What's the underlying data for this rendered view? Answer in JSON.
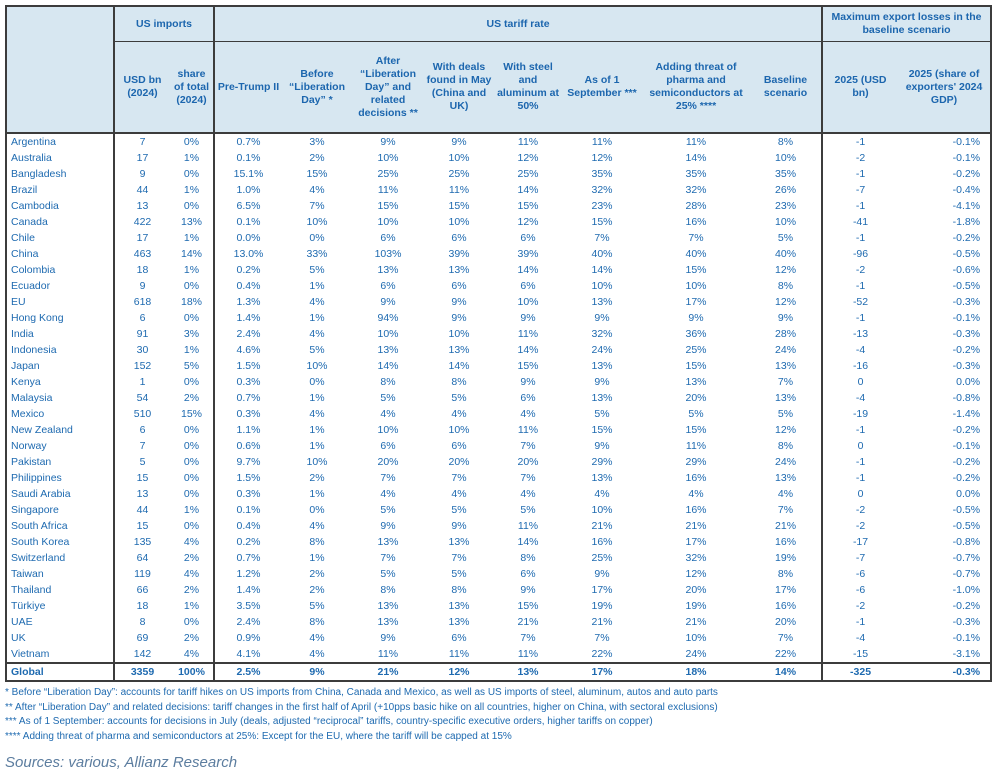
{
  "colors": {
    "header_bg": "#d7e7f1",
    "text_blue": "#1e6ab0",
    "border": "#3c3c3c",
    "source_text": "#5c7d9f"
  },
  "chart_data": {
    "type": "table",
    "column_groups": [
      "US imports",
      "US tariff rate",
      "Maximum export losses in the baseline scenario"
    ],
    "subheaders": [
      "USD bn (2024)",
      "share of total (2024)",
      "Pre-Trump II",
      "Before “Liberation Day” *",
      "After “Liberation Day” and related decisions **",
      "With deals found in May (China and UK)",
      "With steel and aluminum at 50%",
      "As of 1 September ***",
      "Adding threat of pharma and semiconductors at 25% ****",
      "Baseline scenario",
      "2025 (USD bn)",
      "2025 (share of exporters' 2024 GDP)"
    ],
    "rows": [
      [
        "Argentina",
        "7",
        "0%",
        "0.7%",
        "3%",
        "9%",
        "9%",
        "11%",
        "11%",
        "11%",
        "8%",
        "-1",
        "-0.1%"
      ],
      [
        "Australia",
        "17",
        "1%",
        "0.1%",
        "2%",
        "10%",
        "10%",
        "12%",
        "12%",
        "14%",
        "10%",
        "-2",
        "-0.1%"
      ],
      [
        "Bangladesh",
        "9",
        "0%",
        "15.1%",
        "15%",
        "25%",
        "25%",
        "25%",
        "35%",
        "35%",
        "35%",
        "-1",
        "-0.2%"
      ],
      [
        "Brazil",
        "44",
        "1%",
        "1.0%",
        "4%",
        "11%",
        "11%",
        "14%",
        "32%",
        "32%",
        "26%",
        "-7",
        "-0.4%"
      ],
      [
        "Cambodia",
        "13",
        "0%",
        "6.5%",
        "7%",
        "15%",
        "15%",
        "15%",
        "23%",
        "28%",
        "23%",
        "-1",
        "-4.1%"
      ],
      [
        "Canada",
        "422",
        "13%",
        "0.1%",
        "10%",
        "10%",
        "10%",
        "12%",
        "15%",
        "16%",
        "10%",
        "-41",
        "-1.8%"
      ],
      [
        "Chile",
        "17",
        "1%",
        "0.0%",
        "0%",
        "6%",
        "6%",
        "6%",
        "7%",
        "7%",
        "5%",
        "-1",
        "-0.2%"
      ],
      [
        "China",
        "463",
        "14%",
        "13.0%",
        "33%",
        "103%",
        "39%",
        "39%",
        "40%",
        "40%",
        "40%",
        "-96",
        "-0.5%"
      ],
      [
        "Colombia",
        "18",
        "1%",
        "0.2%",
        "5%",
        "13%",
        "13%",
        "14%",
        "14%",
        "15%",
        "12%",
        "-2",
        "-0.6%"
      ],
      [
        "Ecuador",
        "9",
        "0%",
        "0.4%",
        "1%",
        "6%",
        "6%",
        "6%",
        "10%",
        "10%",
        "8%",
        "-1",
        "-0.5%"
      ],
      [
        "EU",
        "618",
        "18%",
        "1.3%",
        "4%",
        "9%",
        "9%",
        "10%",
        "13%",
        "17%",
        "12%",
        "-52",
        "-0.3%"
      ],
      [
        "Hong Kong",
        "6",
        "0%",
        "1.4%",
        "1%",
        "94%",
        "9%",
        "9%",
        "9%",
        "9%",
        "9%",
        "-1",
        "-0.1%"
      ],
      [
        "India",
        "91",
        "3%",
        "2.4%",
        "4%",
        "10%",
        "10%",
        "11%",
        "32%",
        "36%",
        "28%",
        "-13",
        "-0.3%"
      ],
      [
        "Indonesia",
        "30",
        "1%",
        "4.6%",
        "5%",
        "13%",
        "13%",
        "14%",
        "24%",
        "25%",
        "24%",
        "-4",
        "-0.2%"
      ],
      [
        "Japan",
        "152",
        "5%",
        "1.5%",
        "10%",
        "14%",
        "14%",
        "15%",
        "13%",
        "15%",
        "13%",
        "-16",
        "-0.3%"
      ],
      [
        "Kenya",
        "1",
        "0%",
        "0.3%",
        "0%",
        "8%",
        "8%",
        "9%",
        "9%",
        "13%",
        "7%",
        "0",
        "0.0%"
      ],
      [
        "Malaysia",
        "54",
        "2%",
        "0.7%",
        "1%",
        "5%",
        "5%",
        "6%",
        "13%",
        "20%",
        "13%",
        "-4",
        "-0.8%"
      ],
      [
        "Mexico",
        "510",
        "15%",
        "0.3%",
        "4%",
        "4%",
        "4%",
        "4%",
        "5%",
        "5%",
        "5%",
        "-19",
        "-1.4%"
      ],
      [
        "New Zealand",
        "6",
        "0%",
        "1.1%",
        "1%",
        "10%",
        "10%",
        "11%",
        "15%",
        "15%",
        "12%",
        "-1",
        "-0.2%"
      ],
      [
        "Norway",
        "7",
        "0%",
        "0.6%",
        "1%",
        "6%",
        "6%",
        "7%",
        "9%",
        "11%",
        "8%",
        "0",
        "-0.1%"
      ],
      [
        "Pakistan",
        "5",
        "0%",
        "9.7%",
        "10%",
        "20%",
        "20%",
        "20%",
        "29%",
        "29%",
        "24%",
        "-1",
        "-0.2%"
      ],
      [
        "Philippines",
        "15",
        "0%",
        "1.5%",
        "2%",
        "7%",
        "7%",
        "7%",
        "13%",
        "16%",
        "13%",
        "-1",
        "-0.2%"
      ],
      [
        "Saudi Arabia",
        "13",
        "0%",
        "0.3%",
        "1%",
        "4%",
        "4%",
        "4%",
        "4%",
        "4%",
        "4%",
        "0",
        "0.0%"
      ],
      [
        "Singapore",
        "44",
        "1%",
        "0.1%",
        "0%",
        "5%",
        "5%",
        "5%",
        "10%",
        "16%",
        "7%",
        "-2",
        "-0.5%"
      ],
      [
        "South Africa",
        "15",
        "0%",
        "0.4%",
        "4%",
        "9%",
        "9%",
        "11%",
        "21%",
        "21%",
        "21%",
        "-2",
        "-0.5%"
      ],
      [
        "South Korea",
        "135",
        "4%",
        "0.2%",
        "8%",
        "13%",
        "13%",
        "14%",
        "16%",
        "17%",
        "16%",
        "-17",
        "-0.8%"
      ],
      [
        "Switzerland",
        "64",
        "2%",
        "0.7%",
        "1%",
        "7%",
        "7%",
        "8%",
        "25%",
        "32%",
        "19%",
        "-7",
        "-0.7%"
      ],
      [
        "Taiwan",
        "119",
        "4%",
        "1.2%",
        "2%",
        "5%",
        "5%",
        "6%",
        "9%",
        "12%",
        "8%",
        "-6",
        "-0.7%"
      ],
      [
        "Thailand",
        "66",
        "2%",
        "1.4%",
        "2%",
        "8%",
        "8%",
        "9%",
        "17%",
        "20%",
        "17%",
        "-6",
        "-1.0%"
      ],
      [
        "Türkiye",
        "18",
        "1%",
        "3.5%",
        "5%",
        "13%",
        "13%",
        "15%",
        "19%",
        "19%",
        "16%",
        "-2",
        "-0.2%"
      ],
      [
        "UAE",
        "8",
        "0%",
        "2.4%",
        "8%",
        "13%",
        "13%",
        "21%",
        "21%",
        "21%",
        "20%",
        "-1",
        "-0.3%"
      ],
      [
        "UK",
        "69",
        "2%",
        "0.9%",
        "4%",
        "9%",
        "6%",
        "7%",
        "7%",
        "10%",
        "7%",
        "-4",
        "-0.1%"
      ],
      [
        "Vietnam",
        "142",
        "4%",
        "4.1%",
        "4%",
        "11%",
        "11%",
        "11%",
        "22%",
        "24%",
        "22%",
        "-15",
        "-3.1%"
      ]
    ],
    "global_row": [
      "Global",
      "3359",
      "100%",
      "2.5%",
      "9%",
      "21%",
      "12%",
      "13%",
      "17%",
      "18%",
      "14%",
      "-325",
      "-0.3%"
    ]
  },
  "footnotes": [
    "* Before “Liberation Day”: accounts for tariff hikes on US imports from China, Canada and Mexico, as well as US imports of steel, aluminum, autos and auto parts",
    "** After “Liberation Day” and related decisions: tariff changes in the first half of April (+10pps basic hike on all countries, higher on China, with sectoral exclusions)",
    "*** As of 1 September: accounts for decisions in July (deals, adjusted “reciprocal” tariffs, country-specific executive orders, higher tariffs on copper)",
    "**** Adding threat of pharma and semiconductors at 25%: Except for the EU, where the tariff will be capped at 15%"
  ],
  "source": "Sources: various, Allianz Research"
}
